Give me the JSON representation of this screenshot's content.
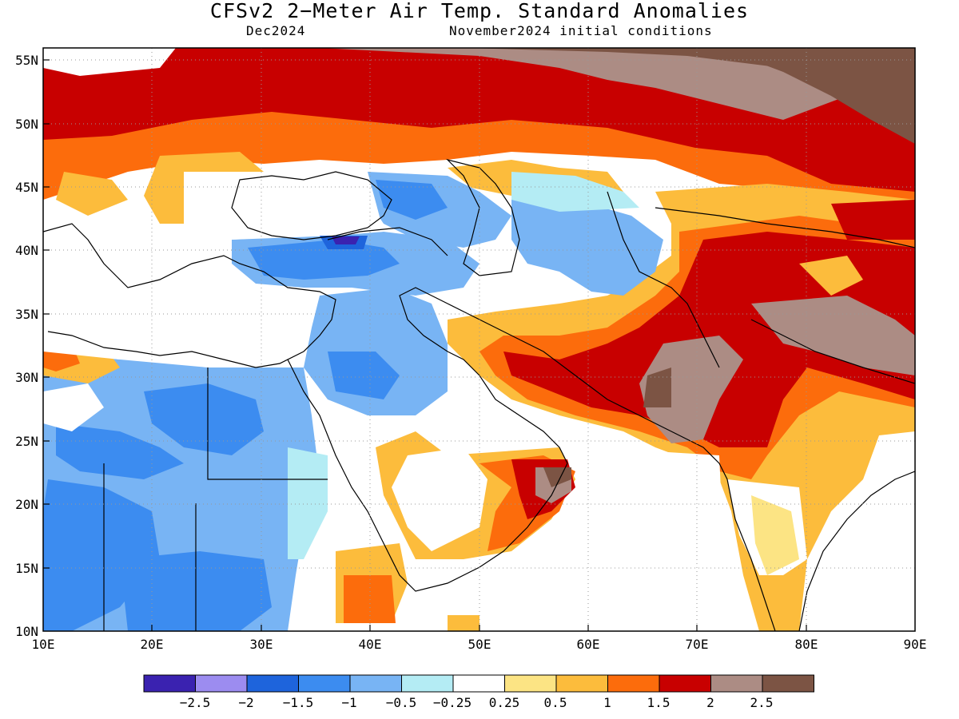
{
  "header": {
    "title": "CFSv2 2−Meter Air Temp. Standard Anomalies",
    "valid_month": "Dec2024",
    "initial_conditions": "November2024 initial conditions"
  },
  "axes": {
    "lat_labels": [
      "55N",
      "50N",
      "45N",
      "40N",
      "35N",
      "30N",
      "25N",
      "20N",
      "15N",
      "10N"
    ],
    "lon_labels": [
      "10E",
      "20E",
      "30E",
      "40E",
      "50E",
      "60E",
      "70E",
      "80E",
      "90E"
    ]
  },
  "colorbar": {
    "colors": [
      "#3a22b0",
      "#9c8cf0",
      "#1e64dc",
      "#3c8cf0",
      "#78b4f4",
      "#b4ecf4",
      "#ffffff",
      "#fce484",
      "#fcbc3c",
      "#fc6c0c",
      "#c80000",
      "#ac8c84",
      "#7c5444"
    ],
    "labels": [
      "−2.5",
      "−2",
      "−1.5",
      "−1",
      "−0.5",
      "−0.25",
      "0.25",
      "0.5",
      "1",
      "1.5",
      "2",
      "2.5"
    ]
  }
}
